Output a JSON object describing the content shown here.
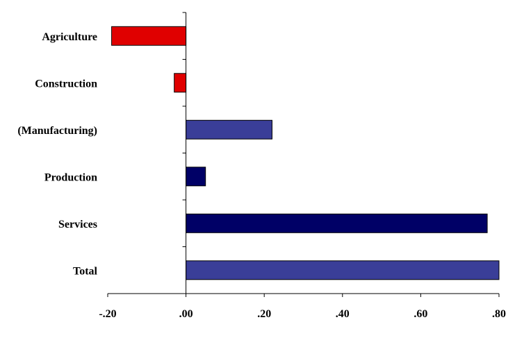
{
  "chart_data": {
    "type": "bar",
    "orientation": "horizontal",
    "categories": [
      "Agriculture",
      "Construction",
      "(Manufacturing)",
      "Production",
      "Services",
      "Total"
    ],
    "values": [
      -0.19,
      -0.03,
      0.22,
      0.05,
      0.77,
      0.8
    ],
    "bar_colors": [
      "#e00000",
      "#e00000",
      "#3a3e98",
      "#000066",
      "#000066",
      "#3a3e98"
    ],
    "xlim": [
      -0.2,
      0.8
    ],
    "xticks": [
      -0.2,
      0.0,
      0.2,
      0.4,
      0.6,
      0.8
    ],
    "xtick_labels": [
      "-.20",
      ".00",
      ".20",
      ".40",
      ".60",
      ".80"
    ],
    "grid": false,
    "legend": "none"
  }
}
